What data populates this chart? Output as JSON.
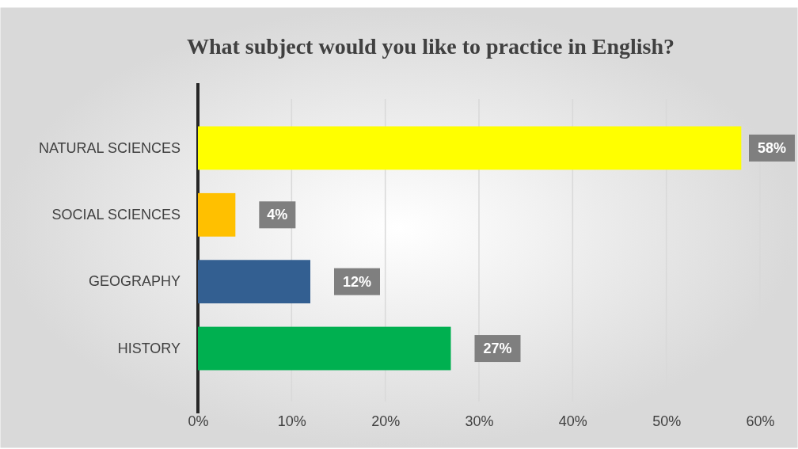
{
  "chart_data": {
    "type": "bar",
    "orientation": "horizontal",
    "title": "What subject would you like to practice in English?",
    "categories": [
      "NATURAL SCIENCES",
      "SOCIAL SCIENCES",
      "GEOGRAPHY",
      "HISTORY"
    ],
    "values": [
      58,
      4,
      12,
      27
    ],
    "colors": [
      "#ffff00",
      "#ffc000",
      "#335f91",
      "#00b050"
    ],
    "value_labels": [
      "58%",
      "4%",
      "12%",
      "27%"
    ],
    "xlim": [
      0,
      60
    ],
    "xticks": [
      {
        "value": 0,
        "label": "0%"
      },
      {
        "value": 10,
        "label": "10%"
      },
      {
        "value": 20,
        "label": "20%"
      },
      {
        "value": 30,
        "label": "30%"
      },
      {
        "value": 40,
        "label": "40%"
      },
      {
        "value": 50,
        "label": "50%"
      },
      {
        "value": 60,
        "label": "60%"
      }
    ],
    "grid": "x"
  }
}
